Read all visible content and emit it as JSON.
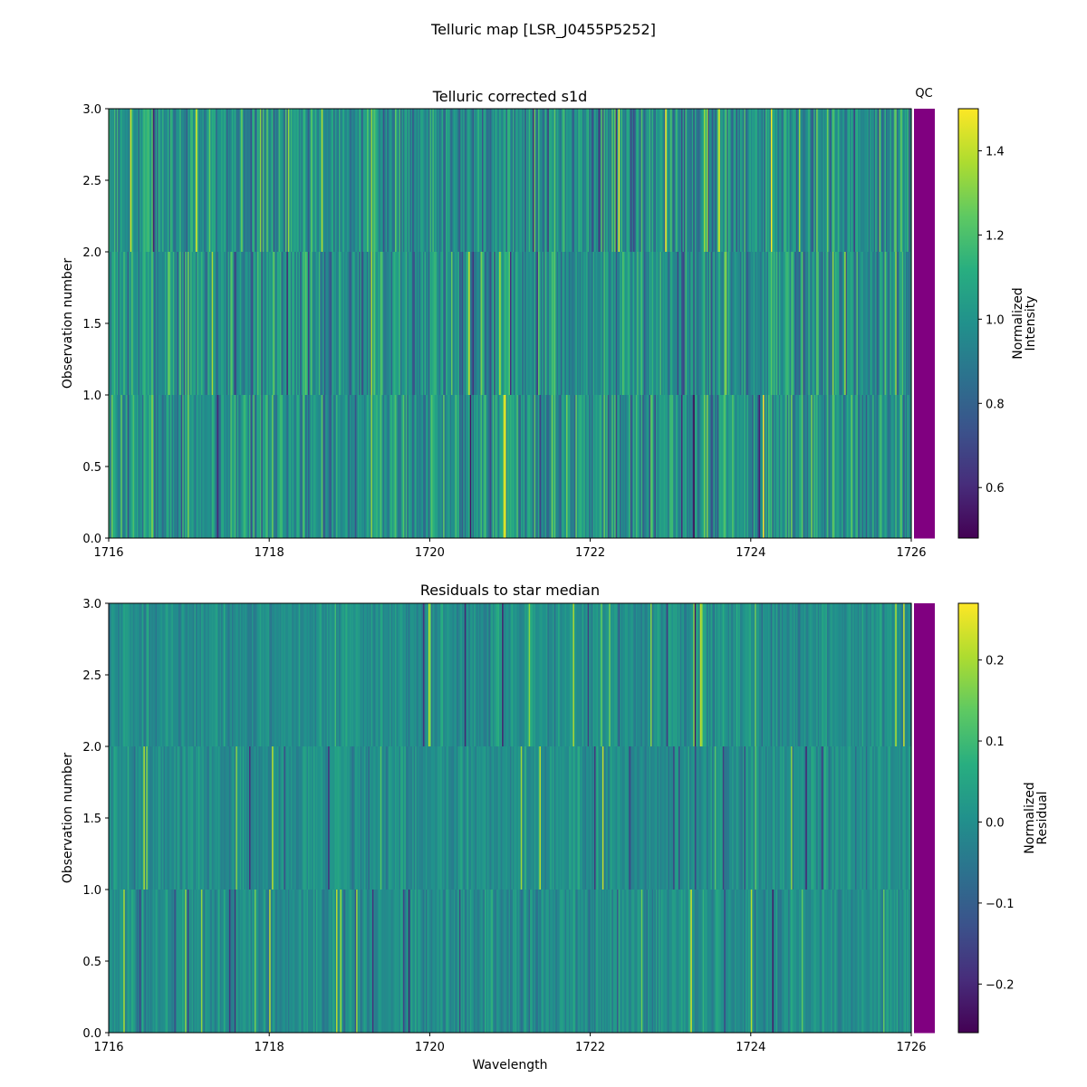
{
  "figure_title": "Telluric map [LSR_J0455P5252]",
  "qc_label": "QC",
  "qc_color": "#800080",
  "chart_data": [
    {
      "type": "heatmap",
      "title": "Telluric corrected s1d",
      "xlabel": "",
      "ylabel": "Observation number",
      "xlim": [
        1716,
        1726
      ],
      "ylim": [
        0,
        3
      ],
      "x_ticks": [
        "1716",
        "1718",
        "1720",
        "1722",
        "1724",
        "1726"
      ],
      "y_ticks": [
        "0.0",
        "0.5",
        "1.0",
        "1.5",
        "2.0",
        "2.5",
        "3.0"
      ],
      "rows": 3,
      "colormap": "viridis",
      "value_range": [
        0.48,
        1.5
      ],
      "typical_value": 1.0,
      "colorbar_label": "Normalized\nIntensity",
      "colorbar_ticks": [
        "0.6",
        "0.8",
        "1.0",
        "1.2",
        "1.4"
      ],
      "qc_values": [
        1,
        1,
        1
      ]
    },
    {
      "type": "heatmap",
      "title": "Residuals to star median",
      "xlabel": "Wavelength",
      "ylabel": "Observation number",
      "xlim": [
        1716,
        1726
      ],
      "ylim": [
        0,
        3
      ],
      "x_ticks": [
        "1716",
        "1718",
        "1720",
        "1722",
        "1724",
        "1726"
      ],
      "y_ticks": [
        "0.0",
        "0.5",
        "1.0",
        "1.5",
        "2.0",
        "2.5",
        "3.0"
      ],
      "rows": 3,
      "colormap": "viridis",
      "value_range": [
        -0.26,
        0.27
      ],
      "typical_value": 0.0,
      "colorbar_label": "Normalized\nResidual",
      "colorbar_ticks": [
        "−0.2",
        "−0.1",
        "0.0",
        "0.1",
        "0.2"
      ],
      "qc_values": [
        1,
        1,
        1
      ]
    }
  ]
}
